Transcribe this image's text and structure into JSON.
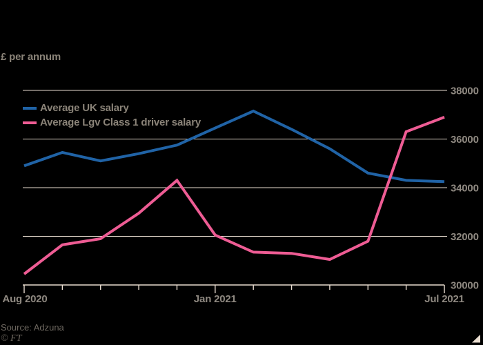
{
  "subtitle": "£ per annum",
  "source_note": "Source: Adzuna",
  "ft_mark": "© FT",
  "colors": {
    "background": "#000000",
    "gridline": "#e9ddd0",
    "axis_text": "#8f8981",
    "legend_text": "#8a8378",
    "source_text": "#6e6860",
    "uk_line": "#2063a6",
    "lgv_line": "#ee5c94",
    "corner_mark": "#e9ddd0"
  },
  "legend": [
    {
      "label": "Average UK salary",
      "color": "#2063a6"
    },
    {
      "label": "Average Lgv Class 1 driver salary",
      "color": "#ee5c94"
    }
  ],
  "chart_data": {
    "type": "line",
    "title": "",
    "subtitle": "£ per annum",
    "x": [
      "Aug 2020",
      "Sep 2020",
      "Oct 2020",
      "Nov 2020",
      "Dec 2020",
      "Jan 2021",
      "Feb 2021",
      "Mar 2021",
      "Apr 2021",
      "May 2021",
      "Jun 2021",
      "Jul 2021"
    ],
    "x_tick_labels": [
      {
        "index": 0,
        "label": "Aug 2020"
      },
      {
        "index": 5,
        "label": "Jan 2021"
      },
      {
        "index": 11,
        "label": "Jul 2021"
      }
    ],
    "ylim": [
      30000,
      38000
    ],
    "yticks": [
      30000,
      32000,
      34000,
      36000,
      38000
    ],
    "grid": true,
    "legend_position": "top-left",
    "series": [
      {
        "name": "Average UK salary",
        "color": "#2063a6",
        "values": [
          34900,
          35450,
          35100,
          35400,
          35750,
          36450,
          37150,
          36400,
          35600,
          34600,
          34300,
          34250
        ]
      },
      {
        "name": "Average Lgv Class 1 driver salary",
        "color": "#ee5c94",
        "values": [
          30450,
          31650,
          31900,
          32950,
          34300,
          32050,
          31350,
          31300,
          31050,
          31800,
          36300,
          36900
        ]
      }
    ]
  }
}
